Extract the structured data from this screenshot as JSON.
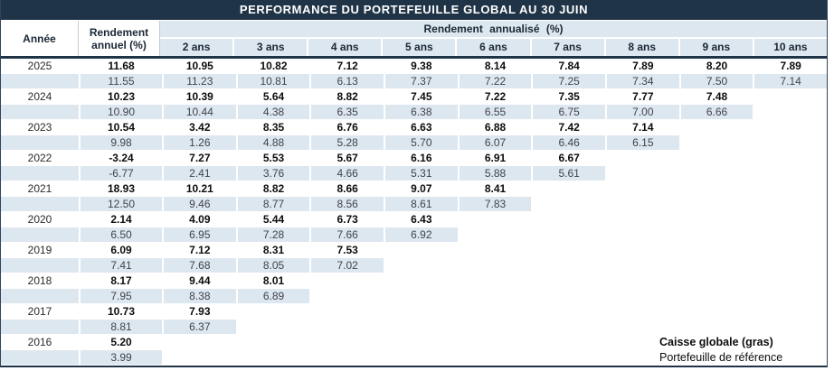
{
  "title": "PERFORMANCE DU PORTEFEUILLE GLOBAL AU 30 JUIN",
  "header": {
    "year_label": "Année",
    "annual_label_line1": "Rendement",
    "annual_label_line2": "annuel (%)",
    "annualized_label": "Rendement annualisé (%)",
    "period_columns": [
      "2 ans",
      "3 ans",
      "4 ans",
      "5 ans",
      "6 ans",
      "7 ans",
      "8 ans",
      "9 ans",
      "10 ans"
    ]
  },
  "rows": [
    {
      "year": "2025",
      "caisse": [
        "11.68",
        "10.95",
        "10.82",
        "7.12",
        "9.38",
        "8.14",
        "7.84",
        "7.89",
        "8.20",
        "7.89"
      ],
      "reference": [
        "11.55",
        "11.23",
        "10.81",
        "6.13",
        "7.37",
        "7.22",
        "7.25",
        "7.34",
        "7.50",
        "7.14"
      ]
    },
    {
      "year": "2024",
      "caisse": [
        "10.23",
        "10.39",
        "5.64",
        "8.82",
        "7.45",
        "7.22",
        "7.35",
        "7.77",
        "7.48"
      ],
      "reference": [
        "10.90",
        "10.44",
        "4.38",
        "6.35",
        "6.38",
        "6.55",
        "6.75",
        "7.00",
        "6.66"
      ]
    },
    {
      "year": "2023",
      "caisse": [
        "10.54",
        "3.42",
        "8.35",
        "6.76",
        "6.63",
        "6.88",
        "7.42",
        "7.14"
      ],
      "reference": [
        "9.98",
        "1.26",
        "4.88",
        "5.28",
        "5.70",
        "6.07",
        "6.46",
        "6.15"
      ]
    },
    {
      "year": "2022",
      "caisse": [
        "-3.24",
        "7.27",
        "5.53",
        "5.67",
        "6.16",
        "6.91",
        "6.67"
      ],
      "reference": [
        "-6.77",
        "2.41",
        "3.76",
        "4.66",
        "5.31",
        "5.88",
        "5.61"
      ]
    },
    {
      "year": "2021",
      "caisse": [
        "18.93",
        "10.21",
        "8.82",
        "8.66",
        "9.07",
        "8.41"
      ],
      "reference": [
        "12.50",
        "9.46",
        "8.77",
        "8.56",
        "8.61",
        "7.83"
      ]
    },
    {
      "year": "2020",
      "caisse": [
        "2.14",
        "4.09",
        "5.44",
        "6.73",
        "6.43"
      ],
      "reference": [
        "6.50",
        "6.95",
        "7.28",
        "7.66",
        "6.92"
      ]
    },
    {
      "year": "2019",
      "caisse": [
        "6.09",
        "7.12",
        "8.31",
        "7.53"
      ],
      "reference": [
        "7.41",
        "7.68",
        "8.05",
        "7.02"
      ]
    },
    {
      "year": "2018",
      "caisse": [
        "8.17",
        "9.44",
        "8.01"
      ],
      "reference": [
        "7.95",
        "8.38",
        "6.89"
      ]
    },
    {
      "year": "2017",
      "caisse": [
        "10.73",
        "7.93"
      ],
      "reference": [
        "8.81",
        "6.37"
      ]
    },
    {
      "year": "2016",
      "caisse": [
        "5.20"
      ],
      "reference": [
        "3.99"
      ]
    }
  ],
  "legend": {
    "bold_label": "Caisse globale (gras)",
    "regular_label": "Portefeuille de référence"
  },
  "colors": {
    "title_bg": "#203448",
    "band_bg": "#dde7f0",
    "header_text": "#1b2735",
    "title_text": "#ffffff"
  }
}
